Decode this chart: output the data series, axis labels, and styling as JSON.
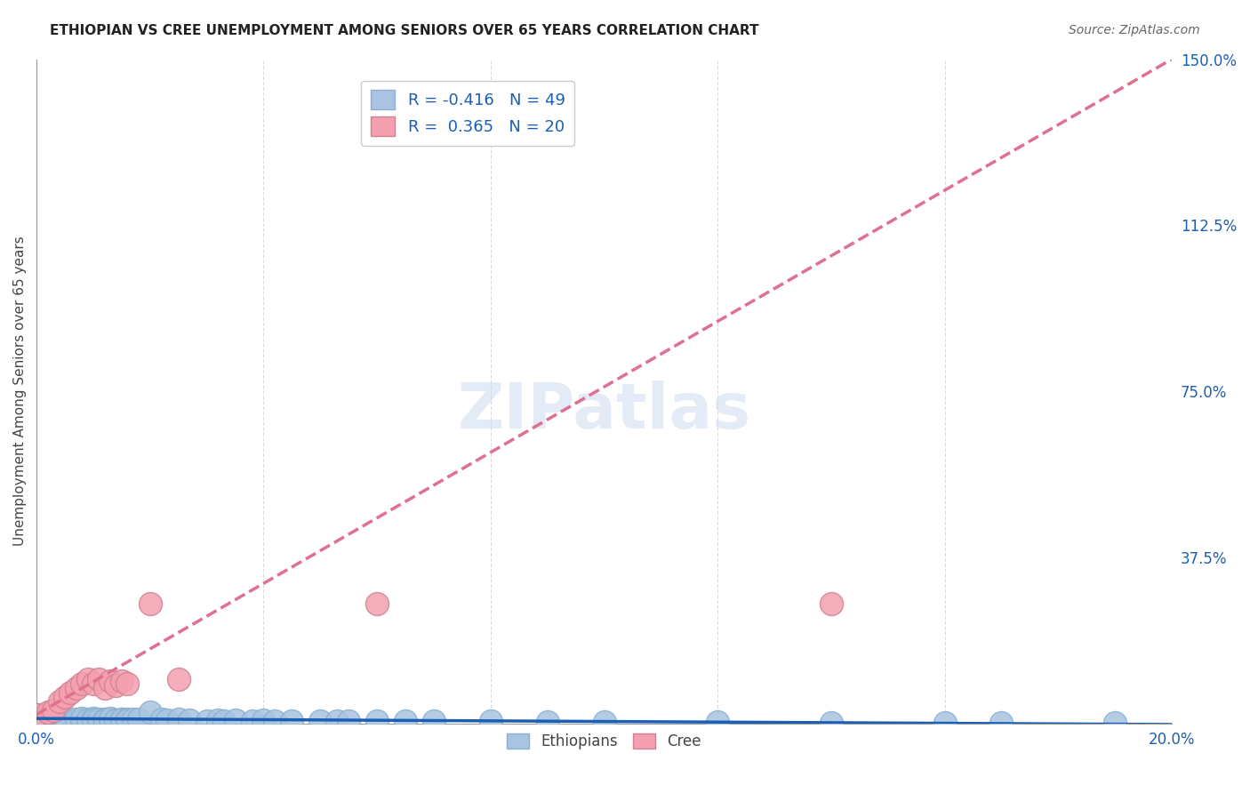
{
  "title": "ETHIOPIAN VS CREE UNEMPLOYMENT AMONG SENIORS OVER 65 YEARS CORRELATION CHART",
  "source": "Source: ZipAtlas.com",
  "xlabel": "",
  "ylabel": "Unemployment Among Seniors over 65 years",
  "xlim": [
    0.0,
    0.2
  ],
  "ylim": [
    0.0,
    1.5
  ],
  "x_ticks": [
    0.0,
    0.04,
    0.08,
    0.12,
    0.16,
    0.2
  ],
  "x_tick_labels": [
    "0.0%",
    "",
    "",
    "",
    "",
    "20.0%"
  ],
  "y_ticks": [
    0.0,
    0.375,
    0.75,
    1.125,
    1.5
  ],
  "y_tick_labels": [
    "",
    "37.5%",
    "75.0%",
    "112.5%",
    "150.0%"
  ],
  "ethiopians_color": "#a8c4e0",
  "cree_color": "#f4a0b0",
  "ethiopians_line_color": "#1a5fb4",
  "cree_line_color": "#e07090",
  "ethiopians_R": -0.416,
  "ethiopians_N": 49,
  "cree_R": 0.365,
  "cree_N": 20,
  "grid_color": "#cccccc",
  "background_color": "#ffffff",
  "watermark": "ZIPatlas",
  "ethiopians_x": [
    0.0,
    0.005,
    0.005,
    0.007,
    0.008,
    0.008,
    0.009,
    0.01,
    0.01,
    0.01,
    0.011,
    0.012,
    0.012,
    0.013,
    0.013,
    0.014,
    0.015,
    0.015,
    0.016,
    0.016,
    0.017,
    0.018,
    0.02,
    0.022,
    0.023,
    0.025,
    0.027,
    0.03,
    0.032,
    0.033,
    0.035,
    0.038,
    0.04,
    0.042,
    0.045,
    0.05,
    0.053,
    0.055,
    0.06,
    0.065,
    0.07,
    0.08,
    0.09,
    0.1,
    0.12,
    0.14,
    0.16,
    0.17,
    0.19
  ],
  "ethiopians_y": [
    0.02,
    0.01,
    0.015,
    0.01,
    0.008,
    0.012,
    0.01,
    0.01,
    0.012,
    0.008,
    0.01,
    0.01,
    0.008,
    0.01,
    0.012,
    0.008,
    0.01,
    0.01,
    0.01,
    0.008,
    0.01,
    0.01,
    0.025,
    0.01,
    0.008,
    0.01,
    0.008,
    0.006,
    0.008,
    0.006,
    0.008,
    0.006,
    0.008,
    0.006,
    0.005,
    0.005,
    0.005,
    0.005,
    0.005,
    0.005,
    0.005,
    0.005,
    0.004,
    0.004,
    0.003,
    0.002,
    0.001,
    0.001,
    0.001
  ],
  "cree_x": [
    0.0,
    0.002,
    0.003,
    0.004,
    0.005,
    0.006,
    0.007,
    0.008,
    0.009,
    0.01,
    0.011,
    0.012,
    0.013,
    0.014,
    0.015,
    0.016,
    0.02,
    0.025,
    0.06,
    0.14
  ],
  "cree_y": [
    0.02,
    0.025,
    0.03,
    0.05,
    0.06,
    0.07,
    0.08,
    0.09,
    0.1,
    0.09,
    0.1,
    0.08,
    0.095,
    0.085,
    0.095,
    0.09,
    0.27,
    0.1,
    0.27,
    0.27
  ]
}
